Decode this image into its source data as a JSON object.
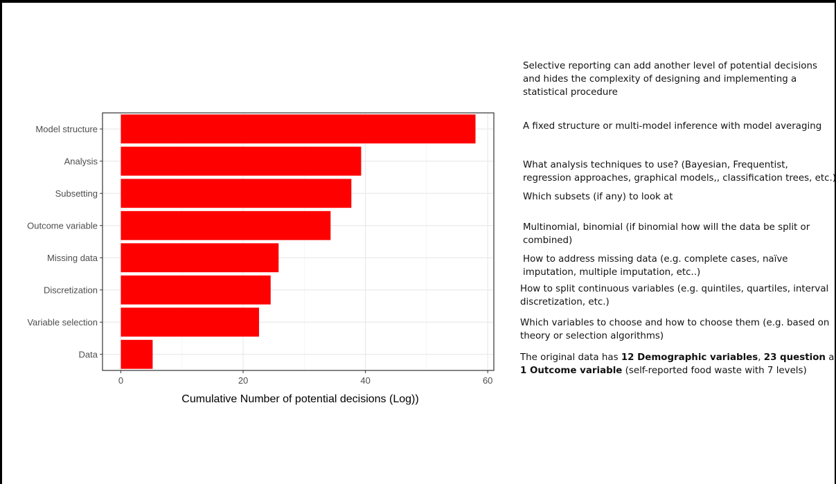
{
  "chart_data": {
    "type": "bar",
    "orientation": "horizontal",
    "categories": [
      "Model structure",
      "Analysis",
      "Subsetting",
      "Outcome variable",
      "Missing data",
      "Discretization",
      "Variable selection",
      "Data"
    ],
    "values": [
      58,
      39.3,
      37.7,
      34.3,
      25.8,
      24.5,
      22.6,
      5.2
    ],
    "bar_color": "#ff0000",
    "xlabel": "Cumulative Number of potential decisions (Log))",
    "ylabel": "",
    "xlim": [
      -3,
      61
    ],
    "xticks": [
      0,
      20,
      40,
      60
    ],
    "grid": true,
    "theme": "bw"
  },
  "notes": [
    {
      "key": "selective",
      "lines": [
        "Selective reporting can add another level of potential decisions",
        "and hides the complexity of designing and implementing a",
        "statistical procedure"
      ]
    },
    {
      "key": "model_structure",
      "lines": [
        "A fixed structure or multi-model inference with model averaging"
      ]
    },
    {
      "key": "analysis",
      "lines": [
        "What analysis techniques to use? (Bayesian, Frequentist,",
        "regression approaches, graphical models,, classification trees, etc.)"
      ]
    },
    {
      "key": "subsetting",
      "lines": [
        "Which subsets (if any) to look at"
      ]
    },
    {
      "key": "outcome",
      "lines": [
        "Multinomial, binomial (if binomial how will the data be split or",
        "combined)"
      ]
    },
    {
      "key": "missing",
      "lines": [
        "How to address missing data (e.g. complete cases, naïve",
        "imputation, multiple imputation, etc..)"
      ]
    },
    {
      "key": "discretization",
      "lines": [
        "How to split continuous variables (e.g. quintiles, quartiles, interval",
        "discretization, etc.)"
      ]
    },
    {
      "key": "variable_selection",
      "lines": [
        "Which variables to choose and how to choose them (e.g. based on",
        "theory or  selection algorithms)"
      ]
    }
  ],
  "data_note": {
    "l1_a": "The original data has ",
    "l1_b": "12 Demographic variables",
    "l1_c": ", ",
    "l1_d": "23 question",
    "l1_e": " and",
    "l2_a": "1 Outcome variable",
    "l2_b": " (self-reported food waste with 7 levels)"
  }
}
